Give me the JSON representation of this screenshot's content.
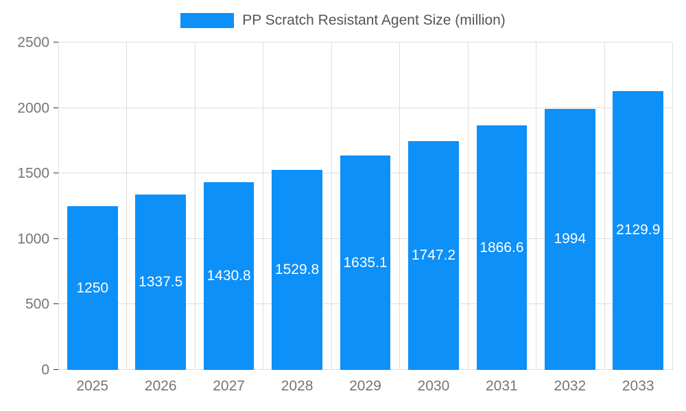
{
  "chart_data": {
    "type": "bar",
    "title": "PP Scratch Resistant Agent Size (million)",
    "categories": [
      "2025",
      "2026",
      "2027",
      "2028",
      "2029",
      "2030",
      "2031",
      "2032",
      "2033"
    ],
    "values": [
      1250,
      1337.5,
      1430.8,
      1529.8,
      1635.1,
      1747.2,
      1866.6,
      1994,
      2129.9
    ],
    "value_labels": [
      "1250",
      "1337.5",
      "1430.8",
      "1529.8",
      "1635.1",
      "1747.2",
      "1866.6",
      "1994",
      "2129.9"
    ],
    "xlabel": "",
    "ylabel": "",
    "ylim": [
      0,
      2500
    ],
    "ytick_step": 500,
    "ytick_labels": [
      "0",
      "500",
      "1000",
      "1500",
      "2000",
      "2500"
    ],
    "grid": "on",
    "legend_position": "top-center",
    "bar_color": "#0d90f8",
    "label_color": "#ffffff",
    "axis_text_color": "#757575",
    "gridline_color": "#dddddd"
  }
}
